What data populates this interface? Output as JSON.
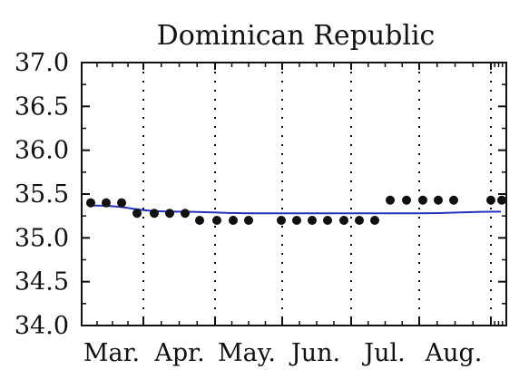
{
  "chart_data": {
    "type": "scatter",
    "title": "Dominican Republic",
    "xlabel": "",
    "ylabel": "",
    "ylim": [
      34.0,
      37.0
    ],
    "yticks": [
      "34.0",
      "34.5",
      "35.0",
      "35.5",
      "36.0",
      "36.5",
      "37.0"
    ],
    "xtick_labels": [
      "Mar.",
      "Apr.",
      "May.",
      "Jun.",
      "Jul.",
      "Aug."
    ],
    "grid": "vertical dotted",
    "points": {
      "y": [
        35.4,
        35.4,
        35.4,
        35.28,
        35.28,
        35.28,
        35.28,
        35.2,
        35.2,
        35.2,
        35.2,
        35.2,
        35.2,
        35.2,
        35.2,
        35.2,
        35.2,
        35.2,
        35.43,
        35.43,
        35.43,
        35.43,
        35.43,
        35.43,
        35.43
      ],
      "color": "#111111"
    },
    "fit_line": {
      "y": [
        35.37,
        35.3,
        35.28,
        35.28,
        35.28,
        35.3
      ],
      "color": "#2233bb"
    }
  }
}
